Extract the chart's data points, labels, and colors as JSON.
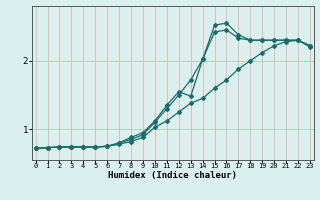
{
  "xlabel": "Humidex (Indice chaleur)",
  "ylabel": "",
  "bg_color": "#daf0ee",
  "grid_color": "#f0a0a0",
  "line_color": "#1a6b6b",
  "x_ticks": [
    0,
    1,
    2,
    3,
    4,
    5,
    6,
    7,
    8,
    9,
    10,
    11,
    12,
    13,
    14,
    15,
    16,
    17,
    18,
    19,
    20,
    21,
    22,
    23
  ],
  "y_ticks": [
    1,
    2
  ],
  "xlim": [
    -0.3,
    23.3
  ],
  "ylim": [
    0.55,
    2.8
  ],
  "series1": {
    "x": [
      0,
      1,
      2,
      3,
      4,
      5,
      6,
      7,
      8,
      9,
      10,
      11,
      12,
      13,
      14,
      15,
      16,
      17,
      18,
      19,
      20,
      21,
      22,
      23
    ],
    "y": [
      0.72,
      0.73,
      0.74,
      0.74,
      0.74,
      0.74,
      0.75,
      0.78,
      0.82,
      0.88,
      1.03,
      1.12,
      1.25,
      1.38,
      1.45,
      1.6,
      1.72,
      1.88,
      2.0,
      2.12,
      2.22,
      2.28,
      2.3,
      2.2
    ]
  },
  "series2": {
    "x": [
      0,
      1,
      2,
      3,
      4,
      5,
      6,
      7,
      8,
      9,
      10,
      11,
      12,
      13,
      14,
      15,
      16,
      17,
      18,
      19,
      20,
      21,
      22,
      23
    ],
    "y": [
      0.72,
      0.73,
      0.74,
      0.74,
      0.74,
      0.74,
      0.75,
      0.8,
      0.85,
      0.92,
      1.1,
      1.3,
      1.5,
      1.72,
      2.02,
      2.42,
      2.45,
      2.33,
      2.3,
      2.3,
      2.3,
      2.3,
      2.3,
      2.22
    ]
  },
  "series3": {
    "x": [
      0,
      1,
      2,
      3,
      4,
      5,
      6,
      7,
      8,
      9,
      10,
      11,
      12,
      13,
      14,
      15,
      16,
      17,
      18,
      19,
      20,
      21,
      22,
      23
    ],
    "y": [
      0.72,
      0.73,
      0.74,
      0.74,
      0.74,
      0.74,
      0.75,
      0.8,
      0.88,
      0.95,
      1.12,
      1.35,
      1.55,
      1.48,
      2.02,
      2.52,
      2.55,
      2.38,
      2.3,
      2.3,
      2.3,
      2.3,
      2.3,
      2.22
    ]
  }
}
